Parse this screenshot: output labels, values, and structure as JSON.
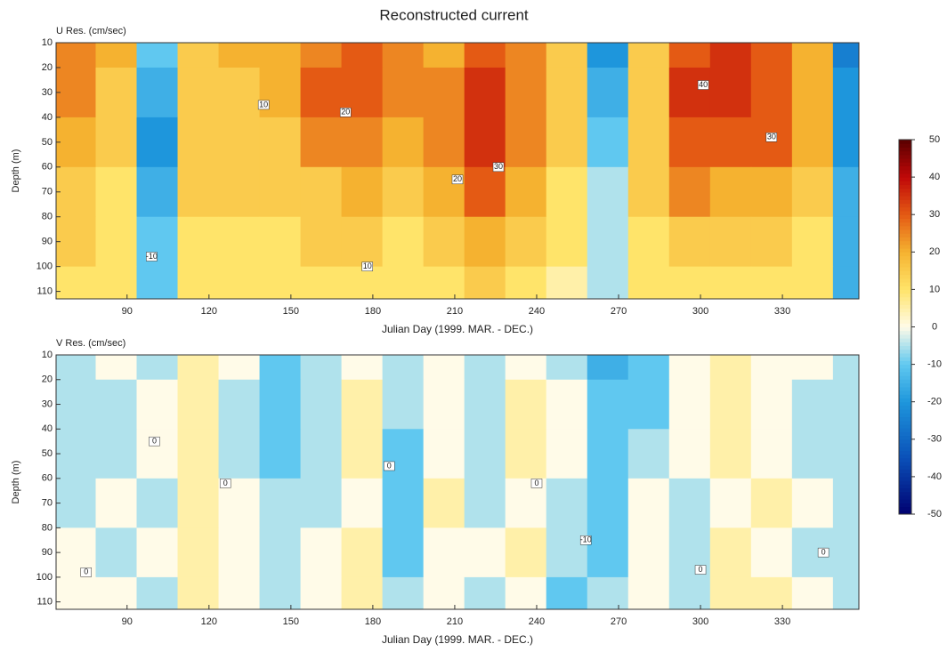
{
  "title": "Reconstructed current",
  "colorbar": {
    "zlim": [
      -50,
      50
    ],
    "ticks": [
      50,
      40,
      30,
      20,
      10,
      0,
      -10,
      -20,
      -30,
      -40,
      -50
    ],
    "colormap": [
      {
        "value": -50,
        "color": "#000070"
      },
      {
        "value": -35,
        "color": "#0a50b8"
      },
      {
        "value": -20,
        "color": "#1e96dc"
      },
      {
        "value": -10,
        "color": "#60c8f0"
      },
      {
        "value": 0,
        "color": "#fffbe8"
      },
      {
        "value": 10,
        "color": "#ffe46a"
      },
      {
        "value": 20,
        "color": "#f5b230"
      },
      {
        "value": 30,
        "color": "#e45a14"
      },
      {
        "value": 40,
        "color": "#c00808"
      },
      {
        "value": 50,
        "color": "#5a0000"
      }
    ]
  },
  "chart_data": [
    {
      "type": "heatmap",
      "title": "U Res. (cm/sec)",
      "xlabel": "Julian Day (1999. MAR. - DEC.)",
      "ylabel": "Depth (m)",
      "xlim": [
        64,
        358
      ],
      "ylim": [
        113,
        10
      ],
      "xticks": [
        90,
        120,
        150,
        180,
        210,
        240,
        270,
        300,
        330
      ],
      "yticks": [
        10,
        20,
        30,
        40,
        50,
        60,
        70,
        80,
        90,
        100,
        110
      ],
      "x": [
        71,
        86,
        101,
        116,
        131,
        146,
        161,
        176,
        191,
        206,
        221,
        236,
        251,
        266,
        281,
        296,
        311,
        326,
        341,
        356
      ],
      "y": [
        10,
        30,
        50,
        70,
        90,
        110
      ],
      "z": [
        [
          25,
          20,
          -10,
          15,
          20,
          20,
          25,
          30,
          25,
          20,
          30,
          25,
          15,
          -20,
          15,
          30,
          35,
          30,
          20,
          -25
        ],
        [
          25,
          15,
          -15,
          15,
          15,
          20,
          30,
          30,
          25,
          25,
          35,
          25,
          15,
          -15,
          15,
          35,
          35,
          30,
          20,
          -20
        ],
        [
          20,
          15,
          -20,
          15,
          15,
          15,
          25,
          25,
          20,
          25,
          35,
          25,
          15,
          -10,
          15,
          30,
          30,
          30,
          20,
          -20
        ],
        [
          15,
          10,
          -15,
          15,
          15,
          15,
          15,
          20,
          15,
          20,
          30,
          20,
          10,
          -5,
          15,
          25,
          20,
          20,
          15,
          -15
        ],
        [
          15,
          10,
          -10,
          10,
          10,
          10,
          15,
          15,
          10,
          15,
          20,
          15,
          10,
          -5,
          10,
          15,
          15,
          15,
          10,
          -15
        ],
        [
          10,
          10,
          -10,
          10,
          10,
          10,
          10,
          10,
          10,
          10,
          15,
          10,
          5,
          -5,
          10,
          10,
          10,
          10,
          10,
          -15
        ]
      ],
      "labels": [
        {
          "x": 140,
          "y": 35,
          "text": "10"
        },
        {
          "x": 170,
          "y": 38,
          "text": "20"
        },
        {
          "x": 226,
          "y": 60,
          "text": "30"
        },
        {
          "x": 301,
          "y": 27,
          "text": "40"
        },
        {
          "x": 326,
          "y": 48,
          "text": "30"
        },
        {
          "x": 99,
          "y": 96,
          "text": "-10"
        },
        {
          "x": 178,
          "y": 100,
          "text": "10"
        },
        {
          "x": 211,
          "y": 65,
          "text": "20"
        }
      ]
    },
    {
      "type": "heatmap",
      "title": "V Res. (cm/sec)",
      "xlabel": "Julian Day (1999. MAR. - DEC.)",
      "ylabel": "Depth (m)",
      "xlim": [
        64,
        358
      ],
      "ylim": [
        113,
        10
      ],
      "xticks": [
        90,
        120,
        150,
        180,
        210,
        240,
        270,
        300,
        330
      ],
      "yticks": [
        10,
        20,
        30,
        40,
        50,
        60,
        70,
        80,
        90,
        100,
        110
      ],
      "x": [
        71,
        86,
        101,
        116,
        131,
        146,
        161,
        176,
        191,
        206,
        221,
        236,
        251,
        266,
        281,
        296,
        311,
        326,
        341,
        356
      ],
      "y": [
        10,
        30,
        50,
        70,
        90,
        110
      ],
      "z": [
        [
          -5,
          0,
          -5,
          5,
          0,
          -10,
          -5,
          0,
          -5,
          0,
          -5,
          0,
          -5,
          -15,
          -10,
          0,
          5,
          0,
          0,
          -5
        ],
        [
          -5,
          -5,
          0,
          5,
          -5,
          -10,
          -5,
          5,
          -5,
          0,
          -5,
          5,
          0,
          -10,
          -10,
          0,
          5,
          0,
          -5,
          -5
        ],
        [
          -5,
          -5,
          0,
          5,
          -5,
          -10,
          -5,
          5,
          -10,
          0,
          -5,
          5,
          0,
          -10,
          -5,
          0,
          5,
          0,
          -5,
          -5
        ],
        [
          -5,
          0,
          -5,
          5,
          0,
          -5,
          -5,
          0,
          -10,
          5,
          -5,
          0,
          -5,
          -10,
          0,
          -5,
          0,
          5,
          0,
          -5
        ],
        [
          0,
          -5,
          0,
          5,
          0,
          -5,
          0,
          5,
          -10,
          0,
          0,
          5,
          -5,
          -10,
          0,
          -5,
          5,
          0,
          -5,
          -5
        ],
        [
          0,
          0,
          -5,
          5,
          0,
          -5,
          0,
          5,
          -5,
          0,
          -5,
          0,
          -10,
          -5,
          0,
          -5,
          5,
          5,
          0,
          -5
        ]
      ],
      "labels": [
        {
          "x": 100,
          "y": 45,
          "text": "0"
        },
        {
          "x": 126,
          "y": 62,
          "text": "0"
        },
        {
          "x": 186,
          "y": 55,
          "text": "0"
        },
        {
          "x": 240,
          "y": 62,
          "text": "0"
        },
        {
          "x": 258,
          "y": 85,
          "text": "-10"
        },
        {
          "x": 300,
          "y": 97,
          "text": "0"
        },
        {
          "x": 345,
          "y": 90,
          "text": "0"
        },
        {
          "x": 75,
          "y": 98,
          "text": "0"
        }
      ]
    }
  ]
}
